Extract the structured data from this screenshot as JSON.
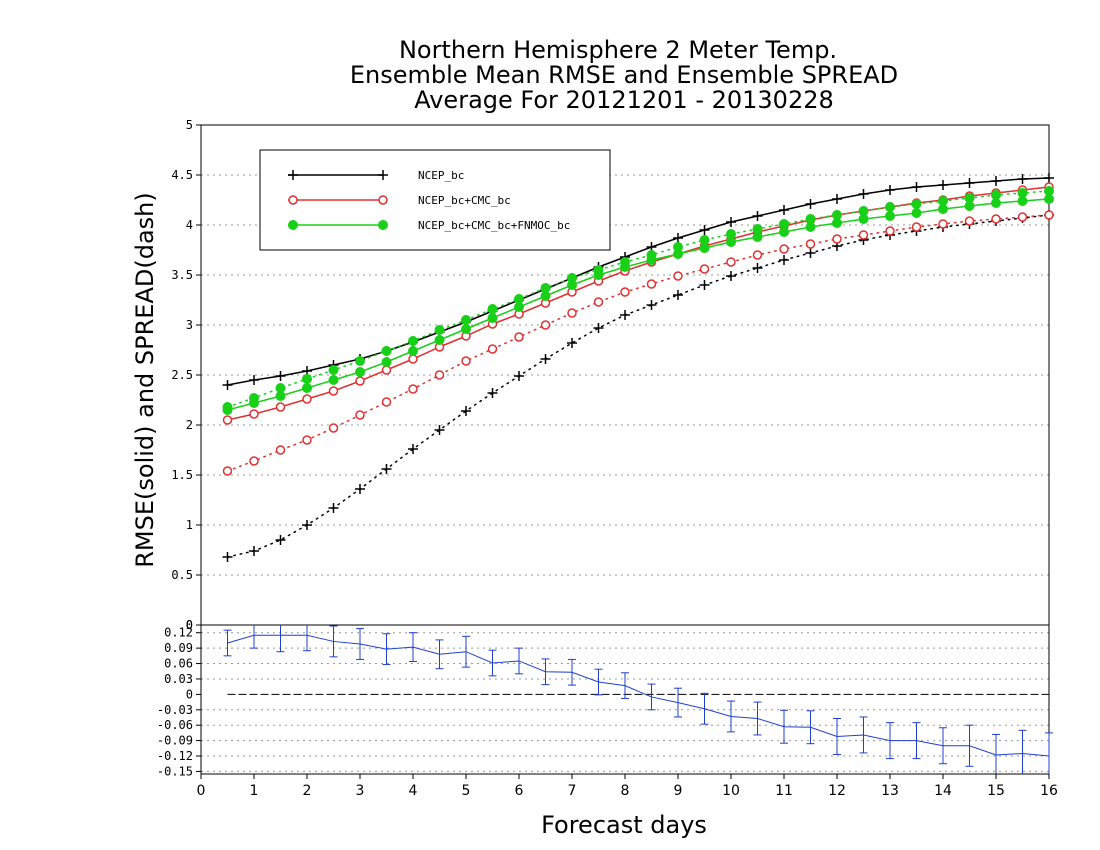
{
  "title_lines": [
    "Northern Hemisphere 2 Meter Temp.",
    "Ensemble Mean RMSE and Ensemble SPREAD",
    "Average For 20121201 - 20130228"
  ],
  "ylabel": "RMSE(solid) and SPREAD(dash)",
  "xlabel": "Forecast days",
  "colors": {
    "ncep": "#000000",
    "cmc": "#e03030",
    "fnmoc": "#18d018",
    "diff": "#1f3fd0",
    "grid": "#999999"
  },
  "chart_data": [
    {
      "type": "line",
      "grid": true,
      "legend_position": "top-left",
      "x": [
        0.5,
        1,
        1.5,
        2,
        2.5,
        3,
        3.5,
        4,
        4.5,
        5,
        5.5,
        6,
        6.5,
        7,
        7.5,
        8,
        8.5,
        9,
        9.5,
        10,
        10.5,
        11,
        11.5,
        12,
        12.5,
        13,
        13.5,
        14,
        14.5,
        15,
        15.5,
        16
      ],
      "xlim": [
        0,
        16
      ],
      "ylim": [
        0,
        5
      ],
      "yticks": [
        "0",
        "0.5",
        "1",
        "1.5",
        "2",
        "2.5",
        "3",
        "3.5",
        "4",
        "4.5",
        "5"
      ],
      "xticks": [
        "0",
        "1",
        "2",
        "3",
        "4",
        "5",
        "6",
        "7",
        "8",
        "9",
        "10",
        "11",
        "12",
        "13",
        "14",
        "15",
        "16"
      ],
      "legend": [
        "NCEP_bc",
        "NCEP_bc+CMC_bc",
        "NCEP_bc+CMC_bc+FNMOC_bc"
      ],
      "series": [
        {
          "name": "NCEP_bc",
          "style": "solid",
          "marker": "plus",
          "color": "#000000",
          "values": [
            2.4,
            2.45,
            2.49,
            2.54,
            2.6,
            2.66,
            2.74,
            2.83,
            2.93,
            3.03,
            3.14,
            3.25,
            3.36,
            3.47,
            3.58,
            3.68,
            3.78,
            3.87,
            3.95,
            4.03,
            4.09,
            4.15,
            4.21,
            4.26,
            4.31,
            4.35,
            4.38,
            4.4,
            4.42,
            4.44,
            4.46,
            4.47
          ]
        },
        {
          "name": "NCEP_bc+CMC_bc",
          "style": "solid",
          "marker": "open-circle",
          "color": "#e03030",
          "values": [
            2.05,
            2.11,
            2.18,
            2.26,
            2.34,
            2.44,
            2.55,
            2.66,
            2.78,
            2.89,
            3.01,
            3.11,
            3.22,
            3.33,
            3.44,
            3.54,
            3.63,
            3.71,
            3.79,
            3.86,
            3.93,
            3.99,
            4.05,
            4.1,
            4.14,
            4.18,
            4.22,
            4.25,
            4.29,
            4.32,
            4.35,
            4.38
          ]
        },
        {
          "name": "NCEP_bc+CMC_bc+FNMOC_bc",
          "style": "solid",
          "marker": "filled-circle",
          "color": "#18d018",
          "values": [
            2.15,
            2.22,
            2.29,
            2.37,
            2.45,
            2.53,
            2.63,
            2.74,
            2.85,
            2.96,
            3.07,
            3.18,
            3.29,
            3.4,
            3.5,
            3.58,
            3.65,
            3.71,
            3.77,
            3.83,
            3.88,
            3.93,
            3.98,
            4.02,
            4.06,
            4.09,
            4.12,
            4.16,
            4.19,
            4.22,
            4.24,
            4.26
          ]
        },
        {
          "name": "NCEP_bc",
          "style": "dotted",
          "marker": "plus",
          "color": "#000000",
          "values": [
            0.68,
            0.74,
            0.85,
            1.0,
            1.17,
            1.36,
            1.56,
            1.76,
            1.95,
            2.14,
            2.32,
            2.49,
            2.66,
            2.82,
            2.97,
            3.1,
            3.2,
            3.3,
            3.4,
            3.49,
            3.57,
            3.65,
            3.72,
            3.79,
            3.85,
            3.9,
            3.94,
            3.98,
            4.01,
            4.04,
            4.07,
            4.1
          ]
        },
        {
          "name": "NCEP_bc+CMC_bc",
          "style": "dotted",
          "marker": "open-circle",
          "color": "#e03030",
          "values": [
            1.54,
            1.64,
            1.75,
            1.85,
            1.97,
            2.1,
            2.23,
            2.36,
            2.5,
            2.64,
            2.76,
            2.88,
            3.0,
            3.12,
            3.23,
            3.33,
            3.41,
            3.49,
            3.56,
            3.63,
            3.7,
            3.76,
            3.81,
            3.86,
            3.9,
            3.94,
            3.98,
            4.01,
            4.04,
            4.06,
            4.08,
            4.1
          ]
        },
        {
          "name": "NCEP_bc+CMC_bc+FNMOC_bc",
          "style": "dotted",
          "marker": "filled-circle",
          "color": "#18d018",
          "values": [
            2.18,
            2.27,
            2.37,
            2.46,
            2.55,
            2.64,
            2.74,
            2.84,
            2.95,
            3.05,
            3.16,
            3.26,
            3.37,
            3.47,
            3.55,
            3.63,
            3.7,
            3.78,
            3.85,
            3.91,
            3.96,
            4.01,
            4.06,
            4.1,
            4.14,
            4.18,
            4.21,
            4.24,
            4.27,
            4.3,
            4.32,
            4.34
          ]
        }
      ]
    },
    {
      "type": "line",
      "grid": true,
      "x": [
        0.5,
        1,
        1.5,
        2,
        2.5,
        3,
        3.5,
        4,
        4.5,
        5,
        5.5,
        6,
        6.5,
        7,
        7.5,
        8,
        8.5,
        9,
        9.5,
        10,
        10.5,
        11,
        11.5,
        12,
        12.5,
        13,
        13.5,
        14,
        14.5,
        15,
        15.5,
        16
      ],
      "xlim": [
        0,
        16
      ],
      "ylim": [
        -0.155,
        0.135
      ],
      "yticks": [
        "0.12",
        "0.09",
        "0.06",
        "0.03",
        "0",
        "-0.03",
        "-0.06",
        "-0.09",
        "-0.12",
        "-0.15"
      ],
      "reference_line": 0,
      "series": [
        {
          "style": "solid",
          "marker": "error-bar",
          "color": "#1f3fd0",
          "values": [
            0.1,
            0.115,
            0.115,
            0.115,
            0.103,
            0.098,
            0.088,
            0.092,
            0.078,
            0.083,
            0.061,
            0.065,
            0.044,
            0.043,
            0.024,
            0.017,
            -0.005,
            -0.016,
            -0.028,
            -0.043,
            -0.047,
            -0.063,
            -0.064,
            -0.082,
            -0.079,
            -0.09,
            -0.09,
            -0.1,
            -0.1,
            -0.118,
            -0.115,
            -0.12
          ],
          "error": [
            0.025,
            0.025,
            0.032,
            0.03,
            0.03,
            0.03,
            0.03,
            0.028,
            0.028,
            0.03,
            0.025,
            0.025,
            0.025,
            0.025,
            0.025,
            0.025,
            0.025,
            0.028,
            0.03,
            0.03,
            0.032,
            0.032,
            0.032,
            0.035,
            0.035,
            0.035,
            0.035,
            0.035,
            0.04,
            0.04,
            0.045,
            0.045
          ]
        }
      ]
    }
  ]
}
